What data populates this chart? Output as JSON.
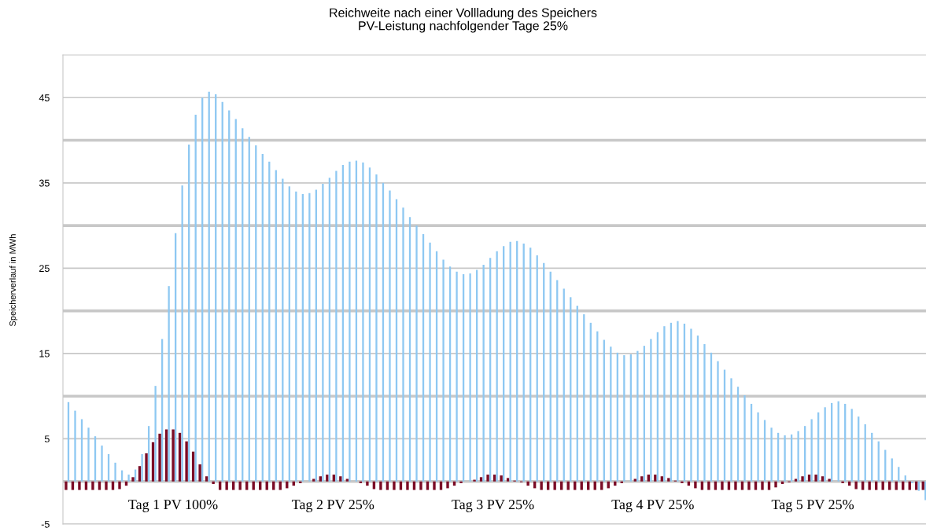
{
  "chart_data": {
    "type": "bar",
    "title": "Reichweite nach einer Vollladung des Speichers\nPV-Leistung nachfolgender Tage 25%",
    "ylabel": "Speicherverlauf in MWh",
    "categories": [
      null,
      null,
      null,
      null,
      null,
      null,
      null,
      null,
      null,
      null,
      null,
      null,
      null,
      null,
      null,
      null,
      null,
      null,
      null,
      null,
      null,
      null,
      null,
      null,
      null,
      null,
      null,
      null,
      null,
      null,
      null,
      null,
      null,
      null,
      null,
      null,
      null,
      null,
      null,
      null,
      null,
      null,
      null,
      null,
      null,
      null,
      null,
      null,
      null,
      null,
      null,
      null,
      null,
      null,
      null,
      null,
      null,
      null,
      null,
      null,
      null,
      null,
      null,
      null,
      null,
      null,
      null,
      null,
      null,
      null,
      null,
      null,
      null,
      null,
      null,
      null,
      null,
      null,
      null,
      null,
      null,
      null,
      null,
      null,
      null,
      null,
      null,
      null,
      null,
      null,
      null,
      null,
      null,
      null,
      null,
      null,
      null,
      null,
      null,
      null,
      null,
      null,
      null,
      null,
      null,
      null,
      null,
      null,
      null,
      null,
      null,
      null,
      null,
      null,
      null,
      null,
      null,
      null,
      null,
      null,
      null,
      null,
      null,
      null,
      null,
      null,
      null,
      null,
      null
    ],
    "series": [
      {
        "color": "#7b0c26",
        "values": [
          -1.0,
          -1.0,
          -1.0,
          -1.0,
          -1.0,
          -1.0,
          -1.0,
          -1.0,
          -0.9,
          -0.5,
          0.5,
          1.8,
          3.3,
          4.6,
          5.6,
          6.1,
          6.1,
          5.7,
          4.7,
          3.5,
          2.0,
          0.6,
          -0.3,
          -1.0,
          -1.0,
          -1.0,
          -1.0,
          -1.0,
          -1.0,
          -1.0,
          -1.0,
          -1.0,
          -1.0,
          -0.8,
          -0.5,
          -0.2,
          0.0,
          0.3,
          0.6,
          0.8,
          0.8,
          0.6,
          0.3,
          0.0,
          -0.2,
          -0.5,
          -0.9,
          -1.0,
          -1.0,
          -1.0,
          -1.0,
          -1.0,
          -1.0,
          -1.0,
          -1.0,
          -1.0,
          -1.0,
          -0.8,
          -0.5,
          -0.2,
          0.0,
          0.2,
          0.5,
          0.8,
          0.8,
          0.7,
          0.4,
          0.1,
          -0.1,
          -0.5,
          -0.8,
          -1.0,
          -1.0,
          -1.0,
          -1.0,
          -1.0,
          -1.0,
          -1.0,
          -1.0,
          -1.0,
          -1.0,
          -0.8,
          -0.5,
          -0.2,
          0.0,
          0.3,
          0.6,
          0.8,
          0.8,
          0.6,
          0.4,
          0.1,
          -0.2,
          -0.5,
          -0.8,
          -1.0,
          -1.0,
          -1.0,
          -1.0,
          -1.0,
          -1.0,
          -1.0,
          -1.0,
          -1.0,
          -1.0,
          -1.0,
          -0.7,
          -0.3,
          -0.1,
          0.3,
          0.6,
          0.8,
          0.8,
          0.6,
          0.3,
          0.0,
          -0.2,
          -0.5,
          -0.9,
          -1.0,
          -1.0,
          -1.0,
          -1.0,
          -1.0,
          -1.0,
          -1.0,
          -1.0,
          -1.0,
          -1.0
        ]
      },
      {
        "color": "#8ec8f2",
        "values": [
          9.3,
          8.3,
          7.3,
          6.3,
          5.3,
          4.2,
          3.2,
          2.2,
          1.3,
          0.8,
          1.4,
          3.2,
          6.5,
          11.2,
          16.7,
          22.9,
          29.1,
          34.7,
          39.5,
          43.0,
          45.0,
          45.7,
          45.4,
          44.5,
          43.5,
          42.5,
          41.4,
          40.4,
          39.4,
          38.4,
          37.5,
          36.5,
          35.5,
          34.6,
          34.0,
          33.7,
          33.8,
          34.2,
          34.9,
          35.6,
          36.4,
          37.1,
          37.5,
          37.6,
          37.4,
          36.8,
          36.0,
          35.0,
          34.1,
          33.1,
          32.1,
          31.0,
          30.0,
          29.0,
          28.0,
          27.0,
          26.0,
          25.2,
          24.6,
          24.3,
          24.4,
          24.8,
          25.4,
          26.2,
          27.0,
          27.6,
          28.1,
          28.2,
          27.9,
          27.4,
          26.5,
          25.6,
          24.6,
          23.6,
          22.6,
          21.6,
          20.6,
          19.6,
          18.6,
          17.6,
          16.6,
          15.8,
          15.1,
          14.8,
          14.9,
          15.3,
          15.9,
          16.7,
          17.5,
          18.2,
          18.6,
          18.8,
          18.5,
          17.9,
          17.1,
          16.1,
          15.1,
          14.1,
          13.1,
          12.1,
          11.1,
          10.1,
          9.1,
          8.1,
          7.2,
          6.3,
          5.7,
          5.4,
          5.5,
          5.9,
          6.5,
          7.3,
          8.1,
          8.7,
          9.2,
          9.4,
          9.1,
          8.5,
          7.6,
          6.7,
          5.7,
          4.7,
          3.7,
          2.7,
          1.7,
          0.7,
          -0.2,
          -1.1,
          -2.2
        ]
      }
    ],
    "ylim": [
      -5,
      50
    ],
    "yticks": [
      -5,
      {
        "value": 0,
        "label": null
      },
      5,
      {
        "value": 10,
        "label": null
      },
      15,
      {
        "value": 20,
        "label": null
      },
      25,
      {
        "value": 30,
        "label": null
      },
      35,
      {
        "value": 40,
        "label": null
      },
      45
    ],
    "grid": "y",
    "annotations": [
      "Tag 1 PV 100%",
      "Tag 2 PV 25%",
      "Tag 3 PV 25%",
      "Tag 4 PV 25%",
      "Tag 5 PV 25%"
    ]
  }
}
